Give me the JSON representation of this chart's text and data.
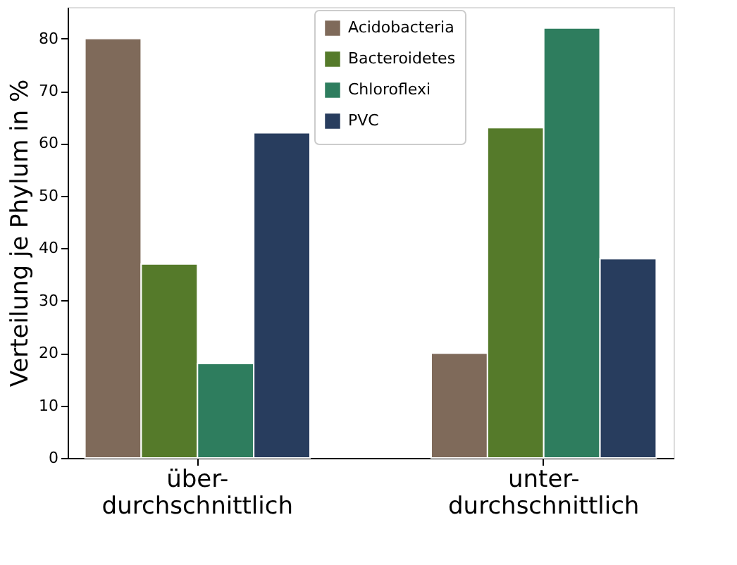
{
  "chart_data": {
    "type": "bar",
    "ylabel": "Verteilung je Phylum in %",
    "categories": [
      "über- durchschnittlich",
      "unter- durchschnittlich"
    ],
    "series": [
      {
        "name": "Acidobacteria",
        "color": "#7f6a5a",
        "values": [
          80,
          20
        ]
      },
      {
        "name": "Bacteroidetes",
        "color": "#557a2a",
        "values": [
          37,
          63
        ]
      },
      {
        "name": "Chloroflexi",
        "color": "#2e7d5e",
        "values": [
          18,
          82
        ]
      },
      {
        "name": "PVC",
        "color": "#283d5e",
        "values": [
          62,
          38
        ]
      }
    ],
    "ylim": [
      0,
      86
    ],
    "yticks": [
      0,
      10,
      20,
      30,
      40,
      50,
      60,
      70,
      80
    ],
    "grid": false,
    "legend": "top"
  }
}
